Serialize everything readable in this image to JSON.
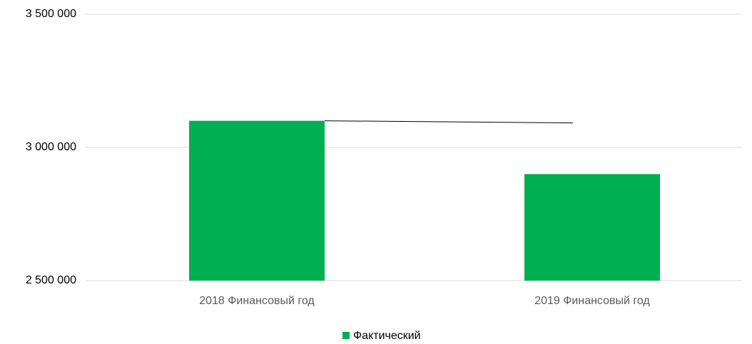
{
  "chart_data": {
    "type": "bar",
    "categories": [
      "2018 Финансовый год",
      "2019 Финансовый год"
    ],
    "series": [
      {
        "name": "Фактический",
        "color": "#00b050",
        "values": [
          3100000,
          2900000
        ]
      }
    ],
    "ylim": [
      2500000,
      3500000
    ],
    "yticks": [
      {
        "value": 2500000,
        "label": "2 500 000"
      },
      {
        "value": 3000000,
        "label": "3 000 000"
      },
      {
        "value": 3500000,
        "label": "3 500 000"
      }
    ],
    "grid": true
  }
}
